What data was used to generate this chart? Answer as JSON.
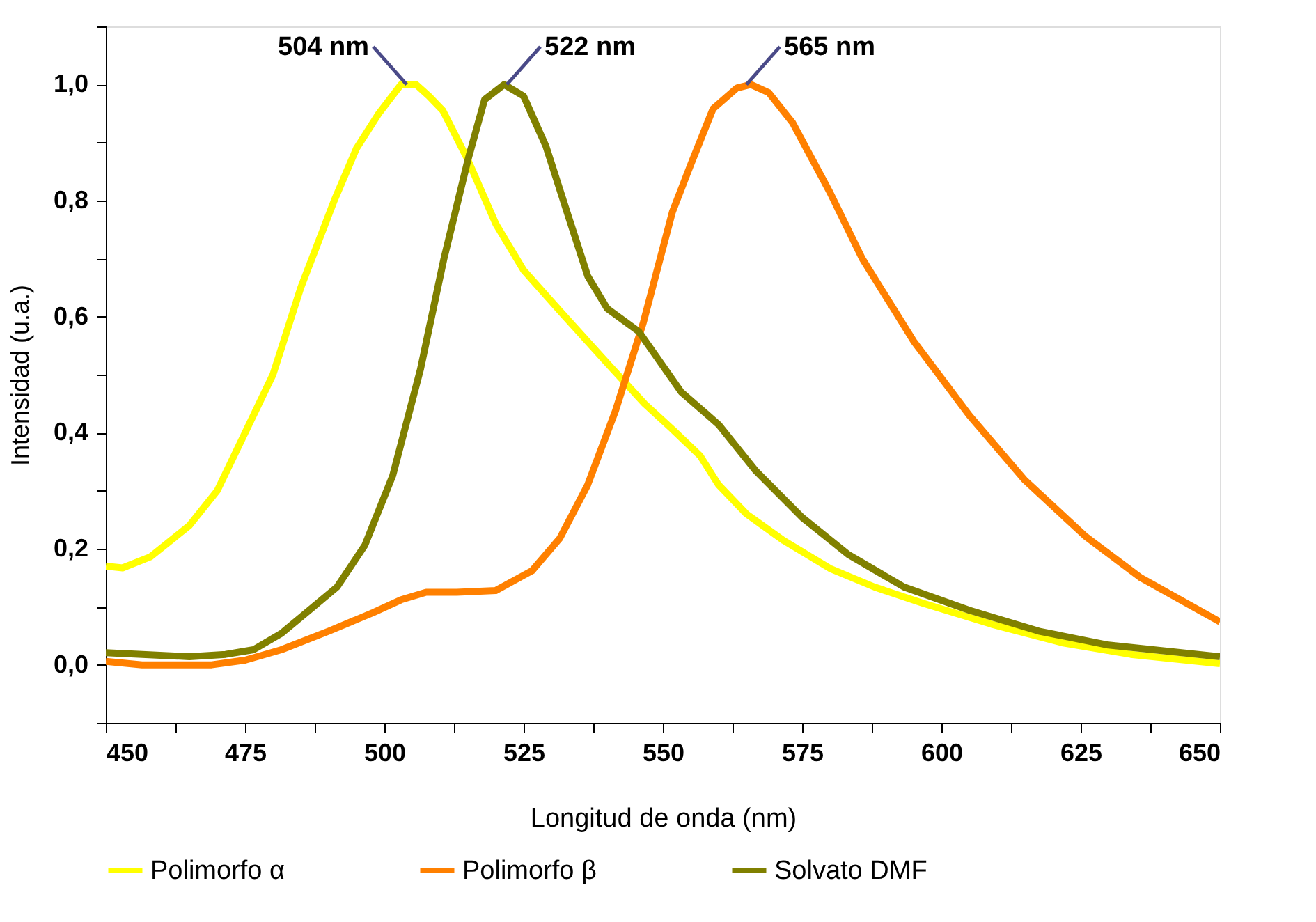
{
  "chart_data": {
    "type": "line",
    "xlabel": "Longitud de onda (nm)",
    "ylabel": "Intensidad (u.a.)",
    "xlim": [
      450,
      650
    ],
    "ylim": [
      -0.1,
      1.1
    ],
    "xticks": [
      450,
      {
        "value": 462.5,
        "label": null
      },
      475,
      {
        "value": 487.5,
        "label": null
      },
      500,
      {
        "value": 512.5,
        "label": null
      },
      525,
      {
        "value": 537.5,
        "label": null
      },
      550,
      {
        "value": 562.5,
        "label": null
      },
      575,
      {
        "value": 587.5,
        "label": null
      },
      600,
      {
        "value": 612.5,
        "label": null
      },
      625,
      {
        "value": 637.5,
        "label": null
      },
      650
    ],
    "yticks": [
      {
        "value": -0.1,
        "label": null
      },
      {
        "value": 0,
        "label": "0,0"
      },
      {
        "value": 0.1,
        "label": null
      },
      {
        "value": 0.2,
        "label": "0,2"
      },
      {
        "value": 0.3,
        "label": null
      },
      {
        "value": 0.4,
        "label": "0,4"
      },
      {
        "value": 0.5,
        "label": null
      },
      {
        "value": 0.6,
        "label": "0,6"
      },
      {
        "value": 0.7,
        "label": null
      },
      {
        "value": 0.8,
        "label": "0,8"
      },
      {
        "value": 0.9,
        "label": null
      },
      {
        "value": 1.0,
        "label": "1,0"
      },
      {
        "value": 1.1,
        "label": null
      }
    ],
    "grid": false,
    "legend": "bottom",
    "marker": "none",
    "line_style": "solid",
    "annotations": [
      {
        "text": "504 nm",
        "x": 504,
        "y": 1.0
      },
      {
        "text": "522 nm",
        "x": 522,
        "y": 1.0
      },
      {
        "text": "565 nm",
        "x": 565,
        "y": 1.0
      }
    ],
    "series": [
      {
        "name": "Polimorfo α",
        "color": "#ffff00",
        "x": [
          450,
          453,
          458,
          465,
          470,
          475,
          480,
          485,
          491,
          495,
          499,
          503,
          505.7,
          508,
          510.5,
          515,
          520,
          525,
          531.5,
          540,
          546.7,
          551.7,
          556.7,
          560,
          565,
          571.7,
          580,
          588,
          596.7,
          609,
          621.7,
          634,
          650
        ],
        "values": [
          0.17,
          0.167,
          0.186,
          0.24,
          0.3,
          0.4,
          0.5,
          0.65,
          0.8,
          0.89,
          0.95,
          1.0,
          1.0,
          0.98,
          0.955,
          0.87,
          0.76,
          0.68,
          0.61,
          0.52,
          0.45,
          0.406,
          0.36,
          0.31,
          0.26,
          0.214,
          0.166,
          0.134,
          0.106,
          0.07,
          0.038,
          0.018,
          0.002
        ]
      },
      {
        "name": "Polimorfo β",
        "color": "#ff8000",
        "x": [
          450,
          456.5,
          469,
          475,
          481.5,
          490,
          498,
          503,
          507.5,
          513,
          520,
          526.5,
          531.5,
          536.5,
          541.5,
          546.5,
          551.7,
          555,
          559,
          563.3,
          565.8,
          569,
          573.3,
          580,
          585.8,
          595,
          605,
          615,
          625.8,
          635.8,
          650
        ],
        "values": [
          0.006,
          0.0,
          0.0,
          0.008,
          0.026,
          0.058,
          0.09,
          0.112,
          0.125,
          0.125,
          0.128,
          0.162,
          0.218,
          0.31,
          0.438,
          0.59,
          0.78,
          0.862,
          0.958,
          0.994,
          1.0,
          0.986,
          0.934,
          0.814,
          0.7,
          0.558,
          0.43,
          0.318,
          0.222,
          0.15,
          0.074
        ]
      },
      {
        "name": "Solvato DMF",
        "color": "#808000",
        "x": [
          450,
          456.5,
          465,
          471.5,
          476.5,
          481.5,
          486.5,
          491.5,
          496.5,
          501.5,
          506.5,
          510.7,
          515,
          518,
          521.5,
          525,
          529,
          533,
          536.5,
          540,
          545.7,
          553.3,
          560,
          566.7,
          575,
          583.3,
          593.3,
          605,
          617.5,
          630,
          650
        ],
        "values": [
          0.021,
          0.018,
          0.014,
          0.018,
          0.026,
          0.054,
          0.094,
          0.134,
          0.206,
          0.326,
          0.51,
          0.7,
          0.87,
          0.974,
          1.0,
          0.98,
          0.894,
          0.774,
          0.67,
          0.614,
          0.574,
          0.47,
          0.414,
          0.334,
          0.254,
          0.19,
          0.134,
          0.094,
          0.058,
          0.034,
          0.014
        ]
      }
    ]
  }
}
